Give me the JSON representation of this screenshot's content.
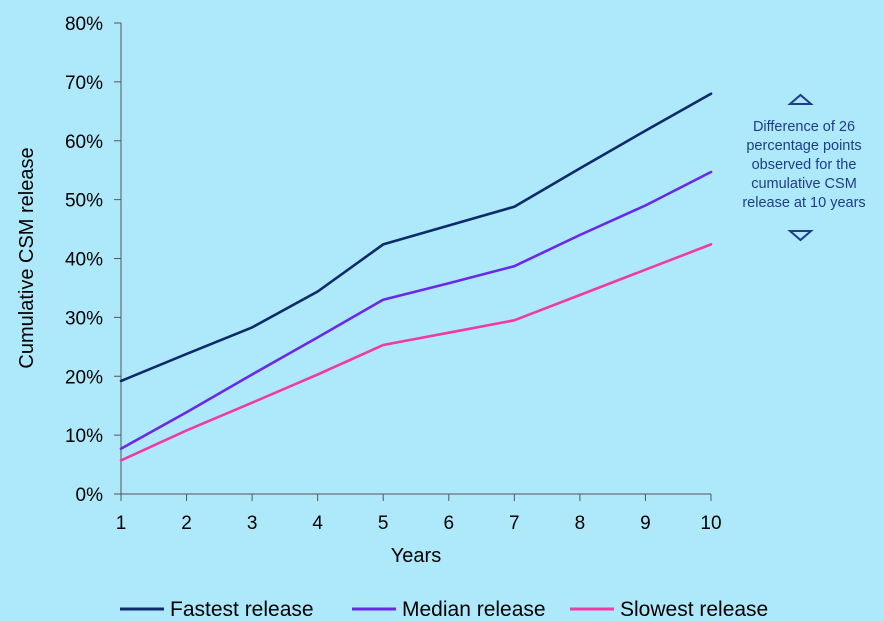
{
  "chart_data": {
    "type": "line",
    "title": "",
    "xlabel": "Years",
    "ylabel": "Cumulative CSM release",
    "x": [
      1,
      2,
      3,
      4,
      5,
      6,
      7,
      8,
      9,
      10
    ],
    "x_tick_labels": [
      "1",
      "2",
      "3",
      "4",
      "5",
      "6",
      "7",
      "8",
      "9",
      "10"
    ],
    "xlim": [
      1,
      10
    ],
    "ylim": [
      0,
      0.8
    ],
    "y_ticks": [
      0,
      0.1,
      0.2,
      0.3,
      0.4,
      0.5,
      0.6,
      0.7,
      0.8
    ],
    "y_tick_labels": [
      "0%",
      "10%",
      "20%",
      "30%",
      "40%",
      "50%",
      "60%",
      "70%",
      "80%"
    ],
    "grid": false,
    "legend_position": "bottom",
    "series": [
      {
        "name": "Fastest release",
        "color": "#0d2a6b",
        "values": [
          0.192,
          0.238,
          0.283,
          0.344,
          0.424,
          0.456,
          0.488,
          0.553,
          0.617,
          0.68
        ]
      },
      {
        "name": "Median release",
        "color": "#6a28e8",
        "values": [
          0.077,
          0.139,
          0.203,
          0.266,
          0.33,
          0.358,
          0.387,
          0.44,
          0.49,
          0.547
        ]
      },
      {
        "name": "Slowest release",
        "color": "#f03aa5",
        "values": [
          0.057,
          0.108,
          0.155,
          0.203,
          0.253,
          0.274,
          0.295,
          0.338,
          0.381,
          0.424
        ]
      }
    ],
    "annotation": {
      "lines": [
        "Difference of 26",
        "percentage points",
        "observed for the",
        "cumulative CSM",
        "release at 10 years"
      ],
      "color": "#1f3d8a",
      "arrow_up_icon": "triangle-up-icon",
      "arrow_down_icon": "triangle-down-icon"
    }
  }
}
